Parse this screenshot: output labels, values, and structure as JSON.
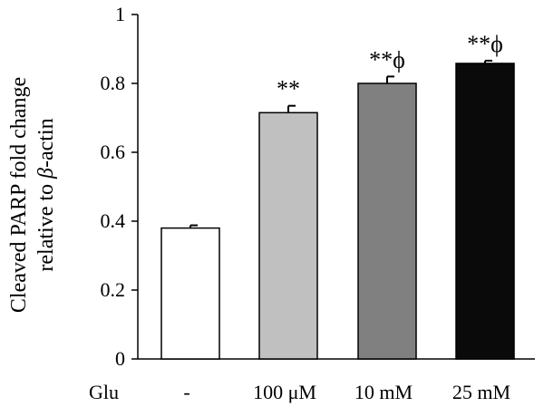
{
  "chart_data": {
    "type": "bar",
    "title": "",
    "xlabel": "Glu",
    "ylabel_line1": "Cleaved PARP fold change",
    "ylabel_line2_prefix": "relative to ",
    "ylabel_line2_italic": "β",
    "ylabel_line2_suffix": "-actin",
    "ylim": [
      0,
      1
    ],
    "yticks": [
      "0",
      "0.2",
      "0.4",
      "0.6",
      "0.8",
      "1"
    ],
    "grid": false,
    "categories": [
      "-",
      "100 μM",
      "10 mM",
      "25 mM"
    ],
    "values": [
      0.38,
      0.715,
      0.8,
      0.858
    ],
    "errors": [
      0.008,
      0.02,
      0.02,
      0.008
    ],
    "significance": [
      "",
      "**",
      "**ϕ",
      "**ϕ"
    ],
    "colors": [
      "#ffffff",
      "#c0c0c0",
      "#808080",
      "#0a0a0a"
    ]
  }
}
